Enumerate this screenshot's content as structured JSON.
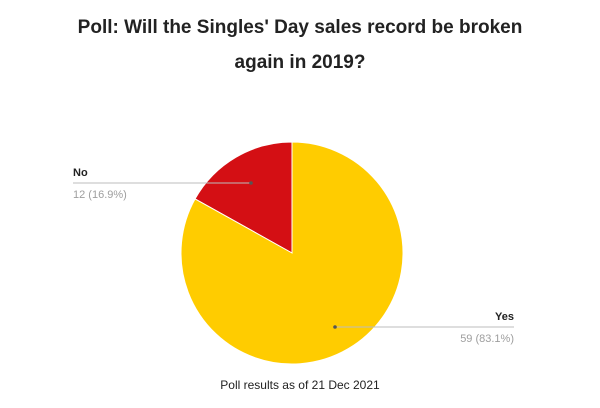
{
  "title": "Poll: Will the Singles' Day sales record be broken again in 2019?",
  "footnote": "Poll results as of 21 Dec 2021",
  "chart_data": {
    "type": "pie",
    "title": "Poll: Will the Singles' Day sales record be broken again in 2019?",
    "slices": [
      {
        "label": "No",
        "value": 12,
        "display": "12 (16.9%)",
        "color": "#d40f14"
      },
      {
        "label": "Yes",
        "value": 59,
        "display": "59 (83.1%)",
        "color": "#ffcc00"
      }
    ],
    "start_angle_deg": 0,
    "direction": "counterclockwise",
    "legend": "none",
    "labels": "leader-lines"
  }
}
